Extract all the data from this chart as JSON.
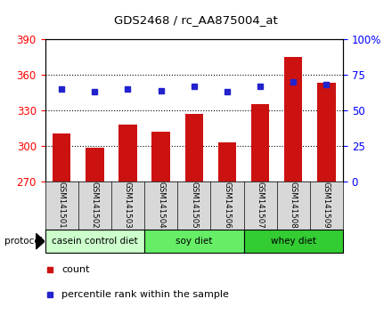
{
  "title": "GDS2468 / rc_AA875004_at",
  "samples": [
    "GSM141501",
    "GSM141502",
    "GSM141503",
    "GSM141504",
    "GSM141505",
    "GSM141506",
    "GSM141507",
    "GSM141508",
    "GSM141509"
  ],
  "counts": [
    310,
    298,
    318,
    312,
    327,
    303,
    335,
    375,
    353
  ],
  "percentile_ranks": [
    65,
    63,
    65,
    64,
    67,
    63,
    67,
    70,
    68
  ],
  "ylim_left": [
    270,
    390
  ],
  "ylim_right": [
    0,
    100
  ],
  "yticks_left": [
    270,
    300,
    330,
    360,
    390
  ],
  "yticks_right": [
    0,
    25,
    50,
    75,
    100
  ],
  "bar_color": "#cc1111",
  "dot_color": "#2222cc",
  "groups": [
    {
      "label": "casein control diet",
      "start": 0,
      "end": 3,
      "color": "#ccffcc"
    },
    {
      "label": "soy diet",
      "start": 3,
      "end": 6,
      "color": "#66ee66"
    },
    {
      "label": "whey diet",
      "start": 6,
      "end": 9,
      "color": "#33cc33"
    }
  ],
  "legend_count_label": "count",
  "legend_pct_label": "percentile rank within the sample",
  "protocol_label": "protocol",
  "plot_bg": "#ffffff"
}
